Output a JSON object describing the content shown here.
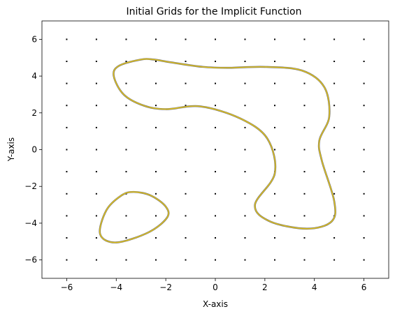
{
  "chart_data": {
    "type": "scatter",
    "title": "Initial Grids for the Implicit Function",
    "xlabel": "X-axis",
    "ylabel": "Y-axis",
    "xlim": [
      -7,
      7
    ],
    "ylim": [
      -7,
      7
    ],
    "xticks": [
      -6,
      -4,
      -2,
      0,
      2,
      4,
      6
    ],
    "yticks": [
      -6,
      -4,
      -2,
      0,
      2,
      4,
      6
    ],
    "xtick_labels": [
      "−6",
      "−4",
      "−2",
      "0",
      "2",
      "4",
      "6"
    ],
    "ytick_labels": [
      "−6",
      "−4",
      "−2",
      "0",
      "2",
      "4",
      "6"
    ],
    "grid": false,
    "grid_points": {
      "x": [
        -6,
        -4.8,
        -3.6,
        -2.4,
        -1.2,
        0,
        1.2,
        2.4,
        3.6,
        4.8,
        6
      ],
      "y": [
        -6,
        -4.8,
        -3.6,
        -2.4,
        -1.2,
        0,
        1.2,
        2.4,
        3.6,
        4.8,
        6
      ],
      "color": "#000000"
    },
    "curve_color": "#e6c619",
    "curve_outline_color": "#6b6b6b",
    "curves": [
      {
        "x": [
          -3.9,
          -3.0,
          -2.5,
          -1.8,
          -0.5,
          0.5,
          2.0,
          3.5,
          4.4,
          4.6,
          4.2,
          4.3,
          4.8,
          4.7,
          3.7,
          2.2,
          1.6,
          2.4,
          2.1,
          1.0,
          -0.6,
          -2.0,
          -2.9,
          -3.7,
          -4.1,
          -3.9
        ],
        "y": [
          4.55,
          4.9,
          4.9,
          4.75,
          4.5,
          4.45,
          4.5,
          4.3,
          3.4,
          1.8,
          0.5,
          -0.6,
          -2.8,
          -3.9,
          -4.3,
          -3.9,
          -3.0,
          -1.3,
          0.6,
          1.7,
          2.35,
          2.2,
          2.4,
          3.0,
          4.0,
          4.55
        ]
      },
      {
        "x": [
          -3.3,
          -2.6,
          -2.0,
          -1.95,
          -2.7,
          -4.0,
          -4.65,
          -4.4,
          -3.8,
          -3.3
        ],
        "y": [
          -2.3,
          -2.5,
          -3.1,
          -3.7,
          -4.5,
          -5.05,
          -4.6,
          -3.3,
          -2.5,
          -2.3
        ]
      }
    ]
  }
}
